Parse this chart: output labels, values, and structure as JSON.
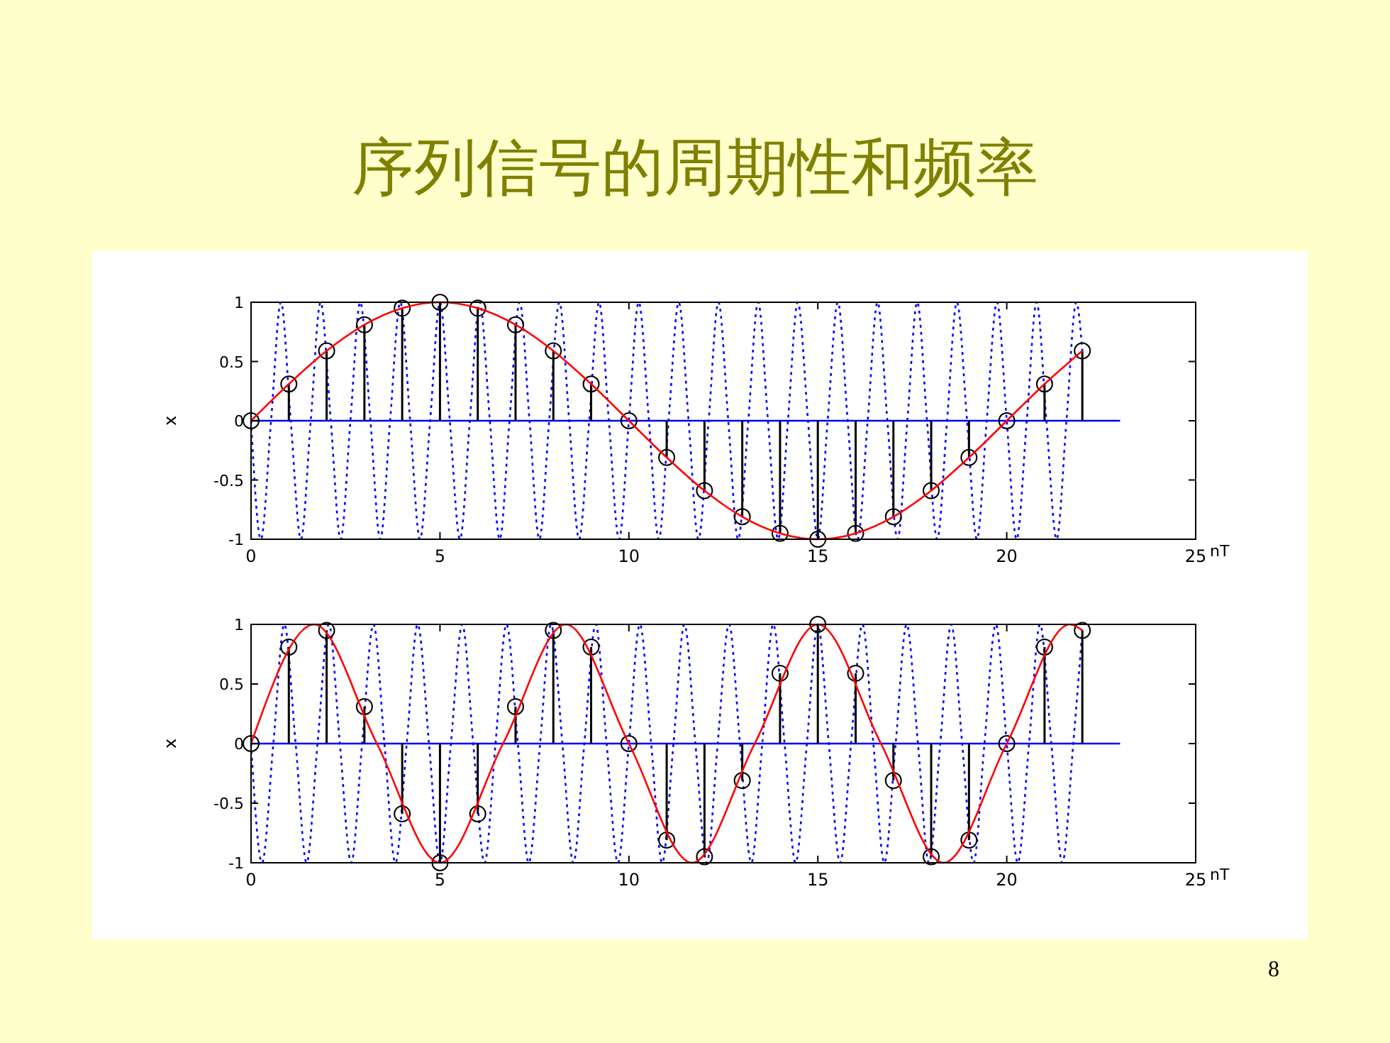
{
  "chart_data": [
    {
      "type": "lollipop",
      "title": "序列信号的周期性和频率",
      "xlabel": "nT",
      "ylabel": "x",
      "xlim": [
        0,
        25
      ],
      "ylim": [
        -1,
        1
      ],
      "xticks": [
        0,
        5,
        10,
        15,
        20,
        25
      ],
      "yticks": [
        -1,
        -0.5,
        0,
        0.5,
        1
      ],
      "x": [
        0,
        1,
        2,
        3,
        4,
        5,
        6,
        7,
        8,
        9,
        10,
        11,
        12,
        13,
        14,
        15,
        16,
        17,
        18,
        19,
        20,
        21,
        22
      ],
      "series": [
        {
          "type": "line",
          "color": "#0000ff",
          "line_style": "dotted",
          "x": [
            0,
            0.26,
            0.53,
            0.79,
            1.05,
            1.32,
            1.58,
            1.84,
            2.11,
            2.37,
            2.63,
            2.89,
            3.16,
            3.42,
            3.68,
            3.95,
            4.21,
            4.47,
            4.74,
            5,
            5.26,
            5.53,
            5.79,
            6.05,
            6.32,
            6.58,
            6.84,
            7.11,
            7.37,
            7.63,
            7.89,
            8.16,
            8.42,
            8.68,
            8.95,
            9.21,
            9.47,
            9.74,
            10,
            10.26,
            10.53,
            10.79,
            11.05,
            11.32,
            11.58,
            11.84,
            12.11,
            12.37,
            12.63,
            12.89,
            13.16,
            13.42,
            13.68,
            13.95,
            14.21,
            14.47,
            14.74,
            15,
            15.26,
            15.53,
            15.79,
            16.05,
            16.32,
            16.58,
            16.84,
            17.11,
            17.37,
            17.63,
            17.89,
            18.16,
            18.42,
            18.68,
            18.95,
            19.21,
            19.47,
            19.74,
            20,
            20.26,
            20.53,
            20.79,
            21.05,
            21.32,
            21.58,
            21.84,
            22
          ],
          "values": [
            0,
            -1,
            0,
            1,
            0,
            -1,
            0,
            1,
            0,
            -1,
            0,
            1,
            0,
            -1,
            0,
            1,
            0,
            -1,
            0,
            1,
            0,
            -1,
            0,
            1,
            0,
            -1,
            0,
            1,
            0,
            -1,
            0,
            1,
            0,
            -1,
            0,
            1,
            0,
            -1,
            0,
            1,
            0,
            -1,
            0,
            1,
            0,
            -1,
            0,
            1,
            0,
            -1,
            0,
            1,
            0,
            -1,
            0,
            1,
            0,
            -1,
            0,
            1,
            0,
            -1,
            0,
            1,
            0,
            -1,
            0,
            1,
            0,
            -1,
            0,
            1,
            0,
            -1,
            0,
            1,
            0,
            -1,
            0,
            1,
            0,
            -1,
            0,
            1,
            0.59
          ]
        },
        {
          "type": "line",
          "color": "#0000ff",
          "line_style": "solid",
          "x": [
            0,
            23
          ],
          "values": [
            0,
            0
          ]
        },
        {
          "color": "#000000",
          "marker": "circle",
          "values": [
            0,
            0.31,
            0.59,
            0.81,
            0.95,
            1,
            0.95,
            0.81,
            0.59,
            0.31,
            0,
            -0.31,
            -0.59,
            -0.81,
            -0.95,
            -1,
            -0.95,
            -0.81,
            -0.59,
            -0.31,
            0,
            0.31,
            0.59
          ]
        },
        {
          "type": "line",
          "color": "#ff0000",
          "line_style": "solid",
          "values": [
            0,
            0.31,
            0.59,
            0.81,
            0.95,
            1,
            0.95,
            0.81,
            0.59,
            0.31,
            0,
            -0.31,
            -0.59,
            -0.81,
            -0.95,
            -1,
            -0.95,
            -0.81,
            -0.59,
            -0.31,
            0,
            0.31,
            0.59
          ]
        }
      ]
    },
    {
      "type": "lollipop",
      "xlabel": "nT",
      "ylabel": "x",
      "xlim": [
        0,
        25
      ],
      "ylim": [
        -1,
        1
      ],
      "xticks": [
        0,
        5,
        10,
        15,
        20,
        25
      ],
      "yticks": [
        -1,
        -0.5,
        0,
        0.5,
        1
      ],
      "annotations": [
        "8"
      ],
      "x": [
        0,
        1,
        2,
        3,
        4,
        5,
        6,
        7,
        8,
        9,
        10,
        11,
        12,
        13,
        14,
        15,
        16,
        17,
        18,
        19,
        20,
        21,
        22
      ],
      "series": [
        {
          "type": "line",
          "color": "#0000ff",
          "line_style": "dotted",
          "x": [
            0,
            0.29,
            0.59,
            0.88,
            1.18,
            1.47,
            1.76,
            2.06,
            2.35,
            2.65,
            2.94,
            3.24,
            3.53,
            3.82,
            4.12,
            4.41,
            4.71,
            5,
            5.29,
            5.59,
            5.88,
            6.18,
            6.47,
            6.76,
            7.06,
            7.35,
            7.65,
            7.94,
            8.24,
            8.53,
            8.82,
            9.12,
            9.41,
            9.71,
            10,
            10.29,
            10.59,
            10.88,
            11.18,
            11.47,
            11.76,
            12.06,
            12.35,
            12.65,
            12.94,
            13.24,
            13.53,
            13.82,
            14.12,
            14.41,
            14.71,
            15,
            15.29,
            15.59,
            15.88,
            16.18,
            16.47,
            16.76,
            17.06,
            17.35,
            17.65,
            17.94,
            18.24,
            18.53,
            18.82,
            19.12,
            19.41,
            19.71,
            20,
            20.29,
            20.59,
            20.88,
            21.18,
            21.47,
            21.76,
            22
          ],
          "values": [
            0,
            -1,
            0,
            1,
            0,
            -1,
            0,
            1,
            0,
            -1,
            0,
            1,
            0,
            -1,
            0,
            1,
            0,
            -1,
            0,
            1,
            0,
            -1,
            0,
            1,
            0,
            -1,
            0,
            1,
            0,
            -1,
            0,
            1,
            0,
            -1,
            0,
            1,
            0,
            -1,
            0,
            1,
            0,
            -1,
            0,
            1,
            0,
            -1,
            0,
            1,
            0,
            -1,
            0,
            1,
            0,
            -1,
            0,
            1,
            0,
            -1,
            0,
            1,
            0,
            -1,
            0,
            1,
            0,
            -1,
            0,
            1,
            0,
            -1,
            0,
            1,
            0,
            -1,
            0,
            0.95
          ]
        },
        {
          "type": "line",
          "color": "#0000ff",
          "line_style": "solid",
          "x": [
            0,
            23
          ],
          "values": [
            0,
            0
          ]
        },
        {
          "color": "#000000",
          "marker": "circle",
          "values": [
            0,
            0.81,
            0.95,
            0.31,
            -0.59,
            -1,
            -0.59,
            0.31,
            0.95,
            0.81,
            0,
            -0.81,
            -0.95,
            -0.31,
            0.59,
            1,
            0.59,
            -0.31,
            -0.95,
            -0.81,
            0,
            0.81,
            0.95
          ]
        },
        {
          "type": "line",
          "color": "#ff0000",
          "line_style": "solid",
          "x": [
            0,
            1.67,
            3.33,
            5,
            6.67,
            8.33,
            10,
            11.67,
            13.33,
            15,
            16.67,
            18.33,
            20,
            21.67,
            22
          ],
          "values": [
            0,
            1,
            0,
            -1,
            0,
            1,
            0,
            -1,
            0,
            1,
            0,
            -1,
            0,
            1,
            0.95
          ]
        }
      ]
    }
  ]
}
